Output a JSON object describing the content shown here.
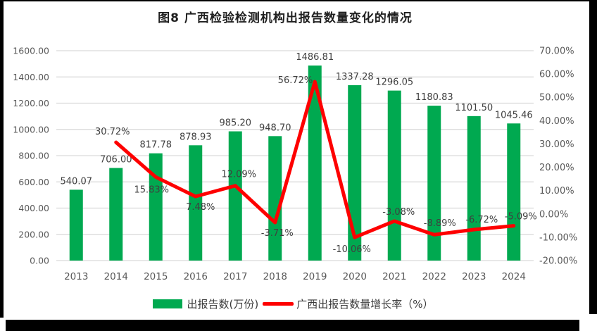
{
  "title": "图8  广西检验检测机构出报告数量变化的情况",
  "chart_data": {
    "type": "combo-bar-line",
    "title": "图8  广西检验检测机构出报告数量变化的情况",
    "categories": [
      "2013",
      "2014",
      "2015",
      "2016",
      "2017",
      "2018",
      "2019",
      "2020",
      "2021",
      "2022",
      "2023",
      "2024"
    ],
    "series": [
      {
        "name": "出报告数(万份)",
        "type": "bar",
        "axis": "left",
        "values": [
          540.07,
          706.0,
          817.78,
          878.93,
          985.2,
          948.7,
          1486.81,
          1337.28,
          1296.05,
          1180.83,
          1101.5,
          1045.46
        ],
        "labels": [
          "540.07",
          "706.00",
          "817.78",
          "878.93",
          "985.20",
          "948.70",
          "1486.81",
          "1337.28",
          "1296.05",
          "1180.83",
          "1101.50",
          "1045.46"
        ]
      },
      {
        "name": "广西出报告数量增长率（%）",
        "type": "line",
        "axis": "right",
        "values": [
          null,
          30.72,
          15.83,
          7.48,
          12.09,
          -3.71,
          56.72,
          -10.06,
          -3.08,
          -8.89,
          -6.72,
          -5.09
        ],
        "labels": [
          "",
          "30.72%",
          "15.83%",
          "7.48%",
          "12.09%",
          "-3.71%",
          "56.72%",
          "-10.06%",
          "-3.08%",
          "-8.89%",
          "-6.72%",
          "-5.09%"
        ]
      }
    ],
    "left_axis": {
      "min": 0,
      "max": 1600,
      "step": 200,
      "tick_labels": [
        "1600.00",
        "1400.00",
        "1200.00",
        "1000.00",
        "800.00",
        "600.00",
        "400.00",
        "200.00",
        "0.00"
      ]
    },
    "right_axis": {
      "min": -20,
      "max": 70,
      "step": 10,
      "tick_labels": [
        "70.00%",
        "60.00%",
        "50.00%",
        "40.00%",
        "30.00%",
        "20.00%",
        "10.00%",
        "0.00%",
        "-10.00%",
        "-20.00%"
      ]
    },
    "grid": true,
    "legend_position": "bottom",
    "colors": {
      "bar": "#00a950",
      "line": "#fe0000",
      "grid": "#d9d9d9",
      "tick_text": "#595959",
      "label_text": "#3f3f3f",
      "title_text": "#1f1f1f"
    }
  }
}
